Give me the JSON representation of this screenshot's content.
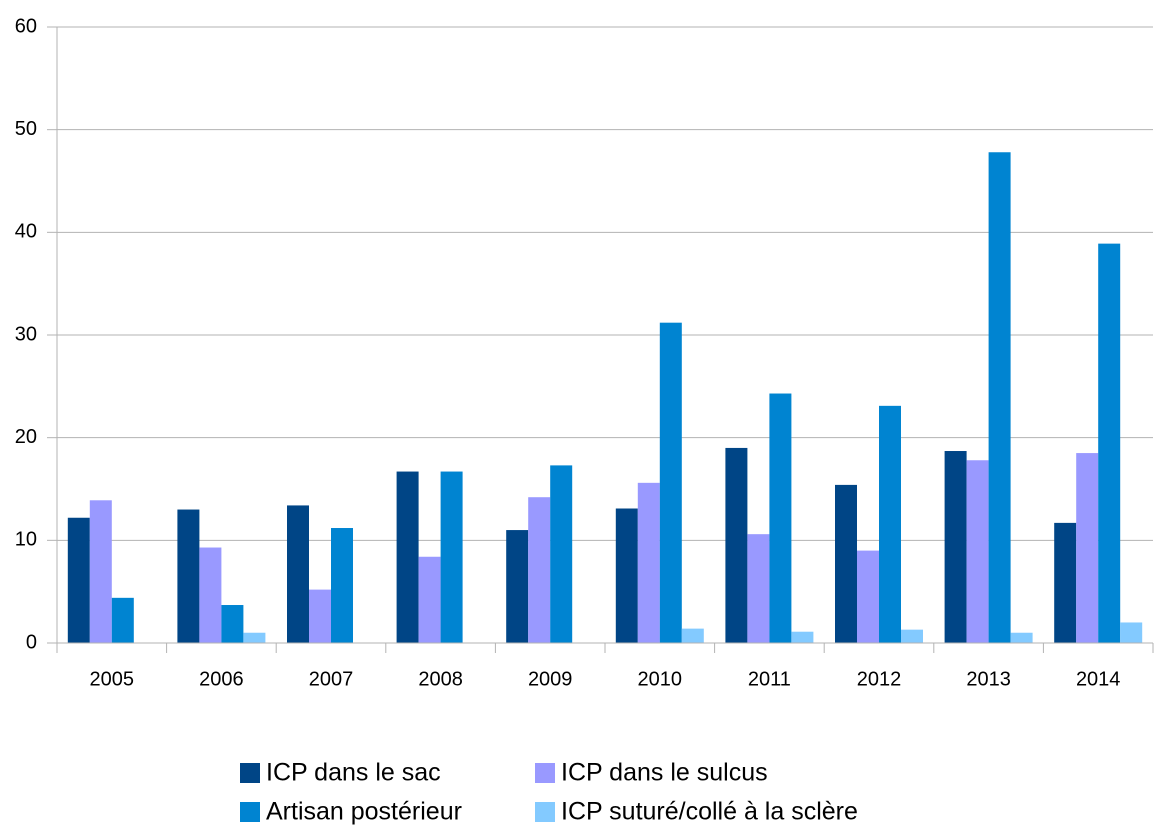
{
  "chart_data": {
    "type": "bar",
    "categories": [
      "2005",
      "2006",
      "2007",
      "2008",
      "2009",
      "2010",
      "2011",
      "2012",
      "2013",
      "2014"
    ],
    "series": [
      {
        "name": "ICP dans le sac",
        "color": "#004586",
        "values": [
          12.2,
          13,
          13.4,
          16.7,
          11,
          13.1,
          19,
          15.4,
          18.7,
          11.7
        ]
      },
      {
        "name": "ICP dans le sulcus",
        "color": "#9999ff",
        "values": [
          13.9,
          9.3,
          5.2,
          8.4,
          14.2,
          15.6,
          10.6,
          9,
          17.8,
          18.5
        ]
      },
      {
        "name": "Artisan postérieur",
        "color": "#0084d1",
        "values": [
          4.4,
          3.7,
          11.2,
          16.7,
          17.3,
          31.2,
          24.3,
          23.1,
          47.8,
          38.9
        ]
      },
      {
        "name": "ICP suturé/collé à la sclère",
        "color": "#83caff",
        "values": [
          0,
          1,
          0,
          0,
          0,
          1.4,
          1.1,
          1.3,
          1,
          2
        ]
      }
    ],
    "ylim": [
      0,
      60
    ],
    "yticks": [
      0,
      10,
      20,
      30,
      40,
      50,
      60
    ],
    "grid": true,
    "legend": "bottom"
  }
}
